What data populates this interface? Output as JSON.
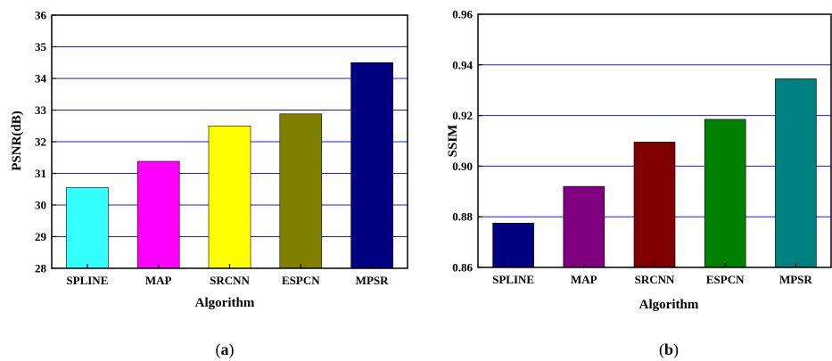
{
  "chart_data": [
    {
      "type": "bar",
      "panel_label": "a",
      "categories": [
        "SPLINE",
        "MAP",
        "SRCNN",
        "ESPCN",
        "MPSR"
      ],
      "values": [
        30.55,
        31.38,
        32.5,
        32.88,
        34.5
      ],
      "colors": [
        "#33ffff",
        "#ff00ff",
        "#ffff00",
        "#808000",
        "#000080"
      ],
      "xlabel": "Algorithm",
      "ylabel": "PSNR(dB)",
      "ylim": [
        28,
        36
      ],
      "yticks": [
        "28",
        "29",
        "30",
        "31",
        "32",
        "33",
        "34",
        "35",
        "36"
      ],
      "grid": true,
      "grid_color": "#1a1aff"
    },
    {
      "type": "bar",
      "panel_label": "b",
      "categories": [
        "SPLINE",
        "MAP",
        "SRCNN",
        "ESPCN",
        "MPSR"
      ],
      "values": [
        0.8775,
        0.892,
        0.9095,
        0.9185,
        0.9345
      ],
      "colors": [
        "#000080",
        "#800080",
        "#800000",
        "#008000",
        "#008080"
      ],
      "xlabel": "Algorithm",
      "ylabel": "SSIM",
      "ylim": [
        0.86,
        0.96
      ],
      "yticks": [
        "0.86",
        "0.88",
        "0.90",
        "0.92",
        "0.94",
        "0.96"
      ],
      "grid": true,
      "grid_color": "#1a1aff"
    }
  ]
}
